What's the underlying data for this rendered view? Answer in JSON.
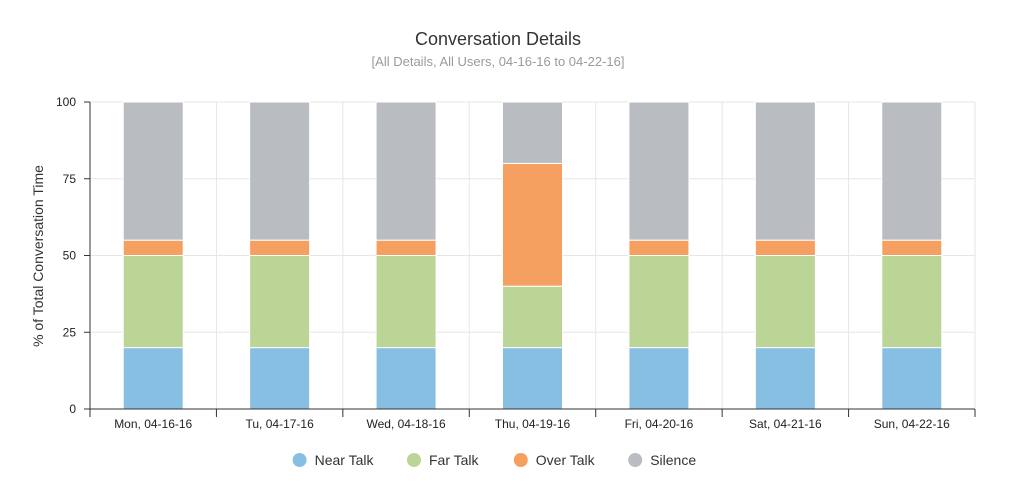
{
  "chart_data": {
    "type": "bar",
    "stacked": true,
    "title": "Conversation Details",
    "subtitle": "[All Details, All Users, 04-16-16 to 04-22-16]",
    "xlabel": "",
    "ylabel": "% of Total Conversation Time",
    "ylim": [
      0,
      100
    ],
    "yticks": [
      "0",
      "25",
      "50",
      "75",
      "100"
    ],
    "grid": true,
    "legend_position": "bottom-center",
    "categories": [
      "Mon, 04-16-16",
      "Tu, 04-17-16",
      "Wed, 04-18-16",
      "Thu, 04-19-16",
      "Fri, 04-20-16",
      "Sat, 04-21-16",
      "Sun, 04-22-16"
    ],
    "series": [
      {
        "name": "Near Talk",
        "color": "#87bfe3",
        "values": [
          20,
          20,
          20,
          20,
          20,
          20,
          20
        ]
      },
      {
        "name": "Far Talk",
        "color": "#bbd597",
        "values": [
          30,
          30,
          30,
          20,
          30,
          30,
          30
        ]
      },
      {
        "name": "Over Talk",
        "color": "#f59f61",
        "values": [
          5,
          5,
          5,
          40,
          5,
          5,
          5
        ]
      },
      {
        "name": "Silence",
        "color": "#b9bcc0",
        "values": [
          45,
          45,
          45,
          20,
          45,
          45,
          45
        ]
      }
    ]
  }
}
